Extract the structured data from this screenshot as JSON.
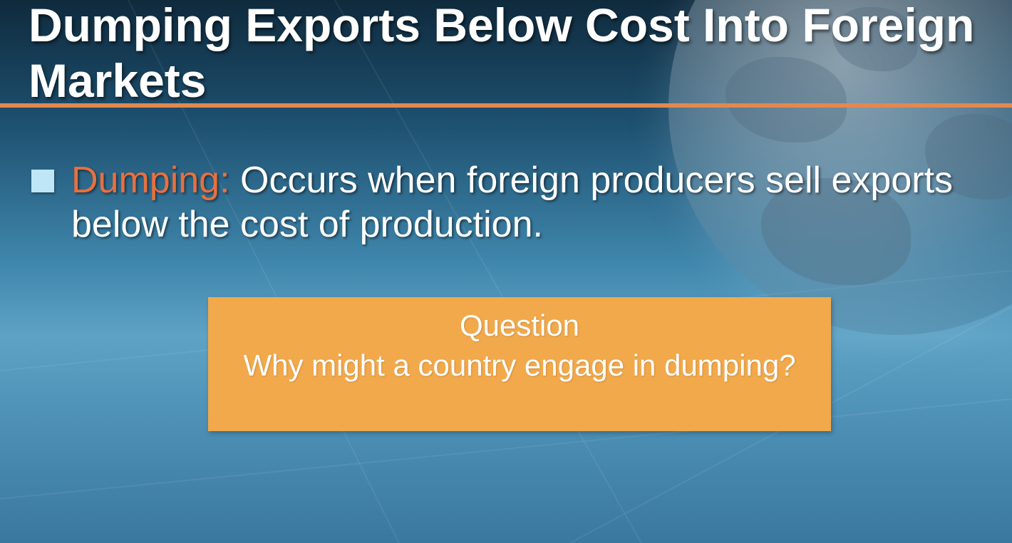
{
  "slide": {
    "title": "Dumping Exports Below Cost Into Foreign Markets",
    "bullet": {
      "term": "Dumping:",
      "definition": " Occurs when foreign producers sell exports below the cost of production."
    },
    "question_box": {
      "heading": "Question",
      "body": "Why might a country engage in dumping?"
    }
  },
  "colors": {
    "title_rule": "#e2894e",
    "term_text": "#e8703f",
    "bullet_marker": "#bfe6f6",
    "question_box_fill": "#f2a94b"
  }
}
